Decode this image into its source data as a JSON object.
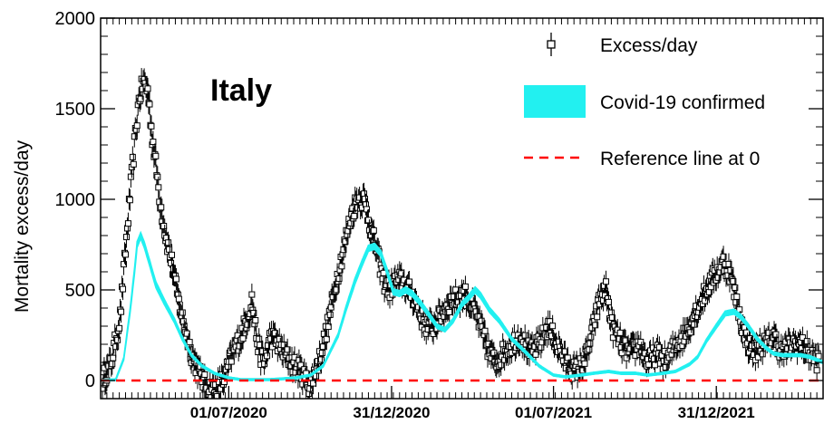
{
  "chart_data": {
    "type": "scatter",
    "title": "Italy",
    "ylabel": "Mortality excess/day",
    "xlabel": "",
    "ylim": [
      -100,
      2000
    ],
    "xlim": [
      "2020-02-08",
      "2022-04-30"
    ],
    "y_ticks": [
      "0",
      "500",
      "1000",
      "1500",
      "2000"
    ],
    "x_tick_labels": [
      {
        "date": "2020-07-01",
        "label": "01/07/2020"
      },
      {
        "date": "2020-12-31",
        "label": "31/12/2020"
      },
      {
        "date": "2021-07-01",
        "label": "01/07/2021"
      },
      {
        "date": "2021-12-31",
        "label": "31/12/2021"
      }
    ],
    "legend_position": "top-right",
    "legend": {
      "excess": "Excess/day",
      "covid": "Covid-19 confirmed",
      "reference": "Reference line at 0"
    },
    "colors": {
      "excess": "#000000",
      "covid": "#22f0f0",
      "reference": "#ff0000"
    },
    "series": [
      {
        "name": "Excess/day",
        "style": "open squares with error bars",
        "error": 60,
        "x": [
          "2020-02-10",
          "2020-02-20",
          "2020-03-01",
          "2020-03-10",
          "2020-03-17",
          "2020-03-22",
          "2020-03-27",
          "2020-04-01",
          "2020-04-06",
          "2020-04-11",
          "2020-04-16",
          "2020-04-21",
          "2020-04-28",
          "2020-05-05",
          "2020-05-12",
          "2020-05-20",
          "2020-05-28",
          "2020-06-05",
          "2020-06-15",
          "2020-06-25",
          "2020-07-05",
          "2020-07-15",
          "2020-07-22",
          "2020-07-27",
          "2020-08-01",
          "2020-08-05",
          "2020-08-10",
          "2020-08-17",
          "2020-08-25",
          "2020-09-01",
          "2020-09-10",
          "2020-09-20",
          "2020-09-30",
          "2020-10-10",
          "2020-10-20",
          "2020-10-30",
          "2020-11-08",
          "2020-11-15",
          "2020-11-22",
          "2020-11-30",
          "2020-12-07",
          "2020-12-15",
          "2020-12-22",
          "2020-12-29",
          "2021-01-05",
          "2021-01-12",
          "2021-01-19",
          "2021-01-26",
          "2021-02-02",
          "2021-02-09",
          "2021-02-16",
          "2021-02-23",
          "2021-03-02",
          "2021-03-09",
          "2021-03-16",
          "2021-03-23",
          "2021-03-30",
          "2021-04-06",
          "2021-04-13",
          "2021-04-20",
          "2021-04-27",
          "2021-05-05",
          "2021-05-15",
          "2021-05-25",
          "2021-06-05",
          "2021-06-15",
          "2021-06-25",
          "2021-07-05",
          "2021-07-15",
          "2021-07-25",
          "2021-08-01",
          "2021-08-08",
          "2021-08-15",
          "2021-08-22",
          "2021-08-29",
          "2021-09-05",
          "2021-09-15",
          "2021-09-25",
          "2021-10-05",
          "2021-10-15",
          "2021-10-25",
          "2021-11-05",
          "2021-11-15",
          "2021-11-25",
          "2021-12-05",
          "2021-12-15",
          "2021-12-25",
          "2022-01-01",
          "2022-01-08",
          "2022-01-15",
          "2022-01-22",
          "2022-01-29",
          "2022-02-05",
          "2022-02-12",
          "2022-02-19",
          "2022-02-26",
          "2022-03-05",
          "2022-03-15",
          "2022-03-25",
          "2022-04-05",
          "2022-04-15",
          "2022-04-25"
        ],
        "y": [
          0,
          100,
          350,
          900,
          1300,
          1550,
          1650,
          1600,
          1350,
          1150,
          950,
          800,
          650,
          450,
          300,
          150,
          50,
          -30,
          -50,
          0,
          150,
          250,
          350,
          450,
          250,
          150,
          100,
          250,
          200,
          150,
          100,
          50,
          -30,
          100,
          300,
          550,
          750,
          900,
          1000,
          1000,
          850,
          700,
          550,
          500,
          550,
          550,
          500,
          450,
          350,
          300,
          300,
          350,
          400,
          450,
          450,
          480,
          420,
          350,
          250,
          150,
          100,
          150,
          200,
          250,
          150,
          200,
          300,
          200,
          100,
          50,
          80,
          150,
          300,
          450,
          500,
          300,
          200,
          150,
          200,
          100,
          150,
          100,
          200,
          250,
          350,
          450,
          550,
          600,
          650,
          600,
          450,
          300,
          200,
          150,
          200,
          200,
          250,
          150,
          200,
          200,
          150,
          100
        ]
      },
      {
        "name": "Covid-19 confirmed",
        "style": "cyan band",
        "x": [
          "2020-02-10",
          "2020-02-25",
          "2020-03-05",
          "2020-03-12",
          "2020-03-17",
          "2020-03-20",
          "2020-03-24",
          "2020-03-28",
          "2020-04-03",
          "2020-04-10",
          "2020-04-20",
          "2020-05-01",
          "2020-05-10",
          "2020-05-20",
          "2020-06-01",
          "2020-06-15",
          "2020-07-01",
          "2020-07-15",
          "2020-08-01",
          "2020-08-15",
          "2020-09-01",
          "2020-09-15",
          "2020-10-01",
          "2020-10-15",
          "2020-11-01",
          "2020-11-10",
          "2020-11-20",
          "2020-11-28",
          "2020-12-05",
          "2020-12-12",
          "2020-12-19",
          "2020-12-26",
          "2021-01-02",
          "2021-01-09",
          "2021-01-16",
          "2021-01-23",
          "2021-02-01",
          "2021-02-10",
          "2021-02-20",
          "2021-03-01",
          "2021-03-10",
          "2021-03-20",
          "2021-03-28",
          "2021-04-04",
          "2021-04-10",
          "2021-04-20",
          "2021-05-01",
          "2021-05-15",
          "2021-06-01",
          "2021-06-15",
          "2021-07-01",
          "2021-07-15",
          "2021-08-01",
          "2021-08-15",
          "2021-09-01",
          "2021-09-15",
          "2021-10-01",
          "2021-10-15",
          "2021-11-01",
          "2021-11-15",
          "2021-12-01",
          "2021-12-10",
          "2021-12-20",
          "2021-12-31",
          "2022-01-10",
          "2022-01-20",
          "2022-01-28",
          "2022-02-05",
          "2022-02-15",
          "2022-02-25",
          "2022-03-05",
          "2022-03-15",
          "2022-03-25",
          "2022-04-05",
          "2022-04-15",
          "2022-04-30"
        ],
        "y": [
          0,
          5,
          120,
          380,
          600,
          750,
          800,
          750,
          650,
          530,
          430,
          330,
          230,
          140,
          80,
          40,
          15,
          5,
          5,
          5,
          10,
          15,
          30,
          80,
          250,
          400,
          550,
          650,
          730,
          740,
          700,
          600,
          490,
          480,
          500,
          480,
          430,
          370,
          300,
          280,
          330,
          420,
          460,
          500,
          470,
          390,
          330,
          230,
          150,
          80,
          30,
          20,
          30,
          40,
          50,
          40,
          40,
          30,
          40,
          50,
          90,
          130,
          220,
          300,
          370,
          380,
          350,
          300,
          230,
          180,
          150,
          140,
          140,
          140,
          130,
          100
        ],
        "band_halfwidth": 12
      },
      {
        "name": "Reference line at 0",
        "style": "red dashed line",
        "y": 0
      }
    ]
  }
}
